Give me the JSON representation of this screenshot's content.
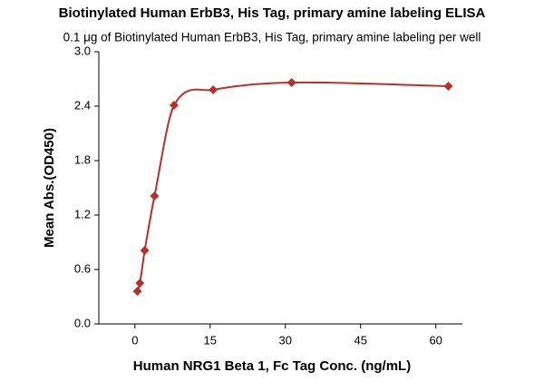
{
  "chart_data": {
    "type": "scatter",
    "title": "Biotinylated Human ErbB3, His Tag, primary amine labeling ELISA",
    "subtitle": "0.1 μg of Biotinylated Human ErbB3, His Tag, primary amine labeling per well",
    "x_label": "Human NRG1 Beta 1, Fc Tag Conc. (ng/mL)",
    "y_label": "Mean Abs.(OD450)",
    "x": [
      0.49,
      0.98,
      1.95,
      3.9,
      7.8,
      15.6,
      31.25,
      62.5
    ],
    "series": [
      {
        "color": "#b7312c",
        "values": [
          0.36,
          0.45,
          0.81,
          1.41,
          2.41,
          2.58,
          2.66,
          2.62
        ]
      }
    ],
    "xlim": [
      -7.2,
      65.3
    ],
    "ylim": [
      0,
      3
    ],
    "xticks": [
      0,
      15,
      30,
      45,
      60
    ],
    "yticks": [
      {
        "value": 0,
        "label": "0.0"
      },
      0.6,
      1.2,
      1.8,
      2.4,
      {
        "value": 3,
        "label": "3.0"
      }
    ],
    "fit_line": true
  }
}
